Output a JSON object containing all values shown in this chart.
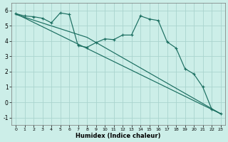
{
  "xlabel": "Humidex (Indice chaleur)",
  "bg_color": "#cceee8",
  "grid_color": "#aad4ce",
  "line_color": "#1a6e60",
  "xlim": [
    -0.5,
    23.5
  ],
  "ylim": [
    -1.5,
    6.5
  ],
  "xticks": [
    0,
    1,
    2,
    3,
    4,
    5,
    6,
    7,
    8,
    9,
    10,
    11,
    12,
    13,
    14,
    15,
    16,
    17,
    18,
    19,
    20,
    21,
    22,
    23
  ],
  "yticks": [
    -1,
    0,
    1,
    2,
    3,
    4,
    5,
    6
  ],
  "series1_x": [
    0,
    1,
    2,
    3,
    4,
    5,
    6,
    7,
    8,
    9,
    10,
    11,
    12,
    13,
    14,
    15,
    16,
    17,
    18,
    19,
    20,
    21,
    22,
    23
  ],
  "series1_y": [
    5.8,
    5.65,
    5.6,
    5.5,
    5.2,
    5.85,
    5.75,
    3.7,
    3.6,
    3.9,
    4.15,
    4.1,
    4.4,
    4.4,
    5.65,
    5.45,
    5.35,
    3.95,
    3.55,
    2.2,
    1.85,
    1.0,
    -0.45,
    -0.75
  ],
  "series2_x": [
    0,
    23
  ],
  "series2_y": [
    5.8,
    -0.75
  ],
  "series3_x": [
    0,
    8,
    23
  ],
  "series3_y": [
    5.75,
    4.25,
    -0.75
  ]
}
